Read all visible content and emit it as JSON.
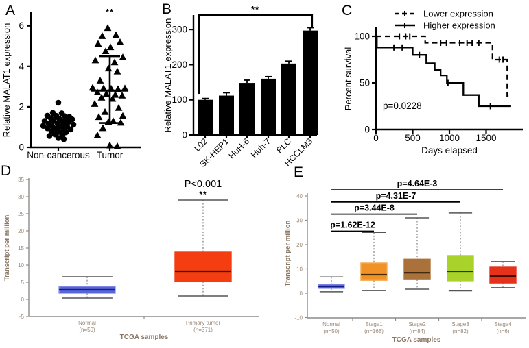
{
  "styles": {
    "background": "#ffffff",
    "abc_axis_color": "#000000",
    "de_axis_color": "#8c8c8c",
    "de_text_color": "#9a8878",
    "de_title_color": "#8a7866",
    "whisker_color": "#808080",
    "cap_color": "#555555"
  },
  "chart_data": [
    {
      "id": "A",
      "panel_label": "A",
      "type": "scatter",
      "ylabel": "Relative MALAT1 expression",
      "yticks": [
        0,
        2,
        4,
        6
      ],
      "ylim": [
        0,
        6.6
      ],
      "categories": [
        "Non-cancerous",
        "Tumor"
      ],
      "significance": {
        "text": "**",
        "over": "Tumor"
      },
      "series": [
        {
          "name": "Non-cancerous",
          "marker": "circle",
          "points": [
            [
              0,
              2.2
            ],
            [
              -8,
              1.7
            ],
            [
              5,
              1.68
            ],
            [
              -16,
              1.56
            ],
            [
              -3,
              1.55
            ],
            [
              9,
              1.54
            ],
            [
              16,
              1.5
            ],
            [
              -11,
              1.44
            ],
            [
              1,
              1.42
            ],
            [
              12,
              1.4
            ],
            [
              20,
              1.38
            ],
            [
              -20,
              1.3
            ],
            [
              -7,
              1.3
            ],
            [
              6,
              1.28
            ],
            [
              15,
              1.26
            ],
            [
              -14,
              1.18
            ],
            [
              -1,
              1.16
            ],
            [
              10,
              1.14
            ],
            [
              22,
              1.12
            ],
            [
              -22,
              1.06
            ],
            [
              -9,
              1.04
            ],
            [
              3,
              1.02
            ],
            [
              13,
              1.0
            ],
            [
              -16,
              0.94
            ],
            [
              -4,
              0.92
            ],
            [
              8,
              0.9
            ],
            [
              18,
              0.88
            ],
            [
              -10,
              0.78
            ],
            [
              1,
              0.76
            ],
            [
              11,
              0.74
            ],
            [
              -5,
              0.64
            ],
            [
              6,
              0.6
            ],
            [
              -13,
              0.56
            ],
            [
              0,
              0.46
            ],
            [
              8,
              0.4
            ]
          ]
        },
        {
          "name": "Tumor",
          "marker": "triangle",
          "mean": 2.8,
          "err_low": 1.2,
          "err_high": 4.5,
          "points": [
            [
              -3,
              5.9
            ],
            [
              9,
              5.55
            ],
            [
              -11,
              5.5
            ],
            [
              15,
              5.2
            ],
            [
              -17,
              5.12
            ],
            [
              1,
              4.95
            ],
            [
              -6,
              4.75
            ],
            [
              19,
              4.45
            ],
            [
              -21,
              4.3
            ],
            [
              7,
              4.2
            ],
            [
              -2,
              3.9
            ],
            [
              11,
              3.75
            ],
            [
              -14,
              3.3
            ],
            [
              -25,
              2.95
            ],
            [
              -9,
              2.92
            ],
            [
              2,
              2.9
            ],
            [
              12,
              2.88
            ],
            [
              22,
              2.92
            ],
            [
              -18,
              2.72
            ],
            [
              -5,
              2.64
            ],
            [
              8,
              2.6
            ],
            [
              18,
              2.56
            ],
            [
              -12,
              2.46
            ],
            [
              4,
              2.4
            ],
            [
              -22,
              2.15
            ],
            [
              13,
              1.95
            ],
            [
              -7,
              1.75
            ],
            [
              19,
              1.55
            ],
            [
              -16,
              1.5
            ],
            [
              5,
              1.3
            ],
            [
              -2,
              1.26
            ],
            [
              16,
              1.22
            ],
            [
              -10,
              0.95
            ],
            [
              -18,
              0.6
            ],
            [
              0,
              0.1
            ],
            [
              11,
              0.06
            ]
          ]
        }
      ]
    },
    {
      "id": "B",
      "panel_label": "B",
      "type": "bar",
      "ylabel": "Relative MALAT1 expression",
      "yticks": [
        0,
        100,
        200,
        300
      ],
      "ylim": [
        0,
        345
      ],
      "categories": [
        "L02",
        "SK-HEP1",
        "HuH-6",
        "Huh-7",
        "PLC",
        "HCCLM3"
      ],
      "values": [
        100,
        112,
        148,
        160,
        203,
        297
      ],
      "errors": [
        4,
        8,
        8,
        6,
        7,
        8
      ],
      "bar_color": "#000000",
      "significance": {
        "text": "**",
        "from": "L02",
        "to": "HCCLM3"
      }
    },
    {
      "id": "C",
      "panel_label": "C",
      "type": "line",
      "ylabel": "Percent survival",
      "xlabel": "Days elapsed",
      "yticks": [
        0,
        50,
        100
      ],
      "xticks": [
        0,
        500,
        1000,
        1500
      ],
      "xlim": [
        0,
        2000
      ],
      "ylim": [
        0,
        110
      ],
      "annotation": "p=0.0228",
      "legend_position": "top-right",
      "series": [
        {
          "name": "Lower expression",
          "style": "dashed",
          "points": [
            [
              0,
              100
            ],
            [
              670,
              100
            ],
            [
              670,
              93
            ],
            [
              1587,
              93
            ],
            [
              1587,
              75
            ],
            [
              1788,
              75
            ],
            [
              1788,
              36
            ],
            [
              1805,
              36
            ]
          ],
          "censors": [
            [
              319,
              100
            ],
            [
              404,
              100
            ],
            [
              460,
              100
            ],
            [
              880,
              93
            ],
            [
              960,
              93
            ],
            [
              1140,
              93
            ],
            [
              1240,
              93
            ],
            [
              1310,
              93
            ],
            [
              1400,
              93
            ],
            [
              1680,
              75
            ],
            [
              1730,
              75
            ]
          ]
        },
        {
          "name": "Higher expression",
          "style": "solid",
          "points": [
            [
              0,
              100
            ],
            [
              12,
              100
            ],
            [
              12,
              88
            ],
            [
              500,
              88
            ],
            [
              500,
              80
            ],
            [
              685,
              80
            ],
            [
              685,
              71
            ],
            [
              800,
              71
            ],
            [
              800,
              64
            ],
            [
              880,
              64
            ],
            [
              880,
              58
            ],
            [
              965,
              58
            ],
            [
              965,
              50
            ],
            [
              1190,
              50
            ],
            [
              1190,
              37
            ],
            [
              1400,
              37
            ],
            [
              1400,
              25
            ],
            [
              1840,
              25
            ]
          ],
          "censors": [
            [
              244,
              88
            ],
            [
              357,
              88
            ],
            [
              591,
              80
            ],
            [
              980,
              50
            ],
            [
              1558,
              25
            ]
          ]
        }
      ]
    },
    {
      "id": "D",
      "panel_label": "D",
      "type": "box",
      "ylabel": "Transcript per million",
      "xlabel": "TCGA samples",
      "yticks": [
        -5,
        0,
        5,
        10,
        15,
        20,
        25,
        30,
        35
      ],
      "ylim": [
        -5,
        35
      ],
      "annotation": {
        "text": "P<0.001",
        "stars": "**",
        "over": "Primary tumor"
      },
      "boxes": [
        {
          "label": "Normal",
          "sublabel": "(n=50)",
          "low": 0.4,
          "q1": 1.8,
          "median": 2.8,
          "q3": 3.8,
          "high": 6.6,
          "fill": "#5a66d6",
          "stroke": "#8d97ea",
          "median_color": "#131c8e"
        },
        {
          "label": "Primary tumor",
          "sublabel": "(n=371)",
          "low": 1.0,
          "q1": 5.2,
          "median": 8.2,
          "q3": 13.8,
          "high": 29.0,
          "fill": "#f43d11",
          "stroke": "#f43d11",
          "median_color": "#111111"
        }
      ]
    },
    {
      "id": "E",
      "panel_label": "E",
      "type": "box",
      "ylabel": "Transcript per million",
      "xlabel": "TCGA samples",
      "yticks": [
        -10,
        0,
        10,
        20,
        30,
        40
      ],
      "ylim": [
        -10,
        45
      ],
      "boxes": [
        {
          "label": "Normal",
          "sublabel": "(n=50)",
          "low": 0.6,
          "q1": 2.0,
          "median": 2.8,
          "q3": 3.7,
          "high": 6.7,
          "fill": "#5a66d6",
          "stroke": "#8d97ea",
          "median_color": "#131c8e"
        },
        {
          "label": "Stage1",
          "sublabel": "(n=168)",
          "low": 1.1,
          "q1": 5.3,
          "median": 7.6,
          "q3": 12.4,
          "high": 25.0,
          "fill": "#f09226",
          "stroke": "#f4a84c",
          "median_color": "#4a2c00"
        },
        {
          "label": "Stage2",
          "sublabel": "(n=84)",
          "low": 1.7,
          "q1": 5.6,
          "median": 8.4,
          "q3": 14.0,
          "high": 31.0,
          "fill": "#ab713a",
          "stroke": "#ab713a",
          "median_color": "#32200a"
        },
        {
          "label": "Stage3",
          "sublabel": "(n=82)",
          "low": 1.0,
          "q1": 5.1,
          "median": 9.0,
          "q3": 15.5,
          "high": 33.0,
          "fill": "#a9d32a",
          "stroke": "#a9d32a",
          "median_color": "#2e3a00"
        },
        {
          "label": "Stage4",
          "sublabel": "(n=6)",
          "low": 2.3,
          "q1": 4.2,
          "median": 7.0,
          "q3": 10.7,
          "high": 13.0,
          "fill": "#e7321b",
          "stroke": "#e7321b",
          "median_color": "#450a00"
        }
      ],
      "comparisons": [
        {
          "label": "p=1.62E-12",
          "from": "Normal",
          "to": "Stage1",
          "y": 25.5
        },
        {
          "label": "p=3.44E-8",
          "from": "Normal",
          "to": "Stage2",
          "y": 32.5
        },
        {
          "label": "p=4.31E-7",
          "from": "Normal",
          "to": "Stage3",
          "y": 37.5
        },
        {
          "label": "p=4.64E-3",
          "from": "Normal",
          "to": "Stage4",
          "y": 42.5
        }
      ]
    }
  ]
}
